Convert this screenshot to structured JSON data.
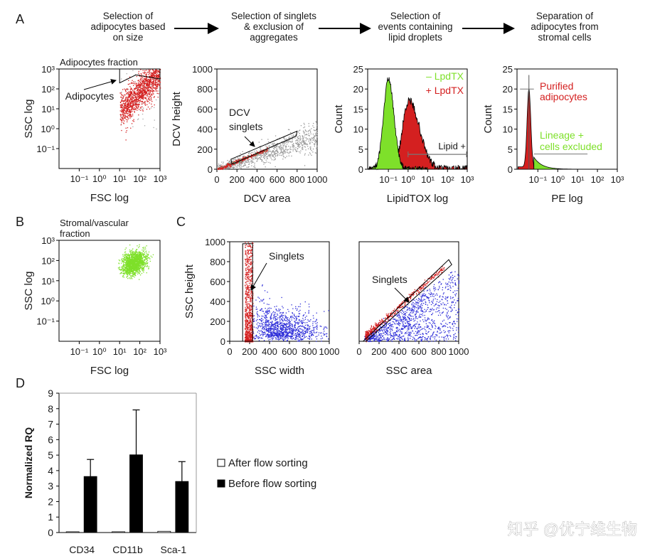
{
  "panel_letters": {
    "A": "A",
    "B": "B",
    "C": "C",
    "D": "D"
  },
  "workflow_steps": [
    [
      "Selection of",
      "adipocytes based",
      "on size"
    ],
    [
      "Selection of singlets",
      "& exclusion of",
      "aggregates"
    ],
    [
      "Selection of",
      "events containing",
      "lipid droplets"
    ],
    [
      "Separation of",
      "adipocytes from",
      "stromal cells"
    ]
  ],
  "colors": {
    "red": "#d42020",
    "green": "#7ee02a",
    "blue": "#2a2ad8",
    "gray": "#9a9a9a",
    "bar_before": "#000000",
    "bar_after": "#ffffff"
  },
  "chart_data": [
    {
      "id": "A1",
      "type": "scatter",
      "title": "Adipocytes fraction",
      "xlabel": "FSC log",
      "ylabel": "SSC log",
      "scale": "log",
      "xticks": [
        "10⁻¹",
        "10⁰",
        "10¹",
        "10²",
        "10³"
      ],
      "yticks": [
        "10³",
        "10²",
        "10¹",
        "10⁰",
        "10⁻¹"
      ],
      "annotations": [
        "Adipocytes"
      ],
      "point_color": "red"
    },
    {
      "id": "A2",
      "type": "scatter",
      "xlabel": "DCV area",
      "ylabel": "DCV height",
      "xlim": [
        0,
        1000
      ],
      "ylim": [
        0,
        1000
      ],
      "xticks": [
        "0",
        "200",
        "400",
        "600",
        "800",
        "1000"
      ],
      "yticks": [
        "0",
        "200",
        "400",
        "600",
        "800",
        "1000"
      ],
      "annotations": [
        "DCV",
        "singlets"
      ],
      "point_color": "gray / red"
    },
    {
      "id": "A3",
      "type": "area",
      "xlabel": "LipidTOX log",
      "ylabel": "Count",
      "ylim": [
        0,
        25
      ],
      "xticks": [
        "10⁻¹",
        "10⁰",
        "10¹",
        "10²",
        "10³"
      ],
      "yticks": [
        "0",
        "5",
        "10",
        "15",
        "20",
        "25"
      ],
      "series": [
        {
          "name": "– LpdTX",
          "color": "green",
          "peak_x_log": -1,
          "peak": 23
        },
        {
          "name": "+ LpdTX",
          "color": "red",
          "peak_x_log": 0,
          "peak": 17
        }
      ],
      "annotations": [
        "Lipid +"
      ]
    },
    {
      "id": "A4",
      "type": "area",
      "xlabel": "PE log",
      "ylabel": "Count",
      "ylim": [
        0,
        25
      ],
      "xticks": [
        "10⁻¹",
        "10⁰",
        "10¹",
        "10²",
        "10³"
      ],
      "yticks": [
        "0",
        "5",
        "10",
        "15",
        "20",
        "25"
      ],
      "annotations": [
        "Purified",
        "adipocytes",
        "Lineage +",
        "cells excluded"
      ]
    },
    {
      "id": "B",
      "type": "scatter",
      "title": [
        "Stromal/vascular",
        "fraction"
      ],
      "xlabel": "FSC log",
      "ylabel": "SSC log",
      "scale": "log",
      "xticks": [
        "10⁻¹",
        "10⁰",
        "10¹",
        "10²",
        "10³"
      ],
      "yticks": [
        "10³",
        "10²",
        "10¹",
        "10⁰",
        "10⁻¹"
      ],
      "point_color": "green"
    },
    {
      "id": "C1",
      "type": "scatter",
      "xlabel": "SSC width",
      "ylabel": "SSC height",
      "xlim": [
        0,
        1000
      ],
      "ylim": [
        0,
        1000
      ],
      "xticks": [
        "0",
        "200",
        "400",
        "600",
        "800",
        "1000"
      ],
      "yticks": [
        "0",
        "200",
        "400",
        "600",
        "800",
        "1000"
      ],
      "annotations": [
        "Singlets"
      ]
    },
    {
      "id": "C2",
      "type": "scatter",
      "xlabel": "SSC area",
      "xlim": [
        0,
        1000
      ],
      "ylim": [
        0,
        1000
      ],
      "xticks": [
        "0",
        "200",
        "400",
        "600",
        "800",
        "1000"
      ],
      "annotations": [
        "Singlets"
      ]
    },
    {
      "id": "D",
      "type": "bar",
      "ylabel": "Normalized RQ",
      "ylim": [
        0,
        9
      ],
      "yticks": [
        "0",
        "1",
        "2",
        "3",
        "4",
        "5",
        "6",
        "7",
        "8",
        "9"
      ],
      "categories": [
        "CD34",
        "CD11b",
        "Sca-1"
      ],
      "series": [
        {
          "name": "After flow sorting",
          "values": [
            0.05,
            0.05,
            0.08
          ],
          "errors": [
            0,
            0,
            0
          ]
        },
        {
          "name": "Before flow sorting",
          "values": [
            3.62,
            5.02,
            3.3
          ],
          "errors": [
            1.1,
            2.9,
            1.28
          ]
        }
      ],
      "legend": "right",
      "grid": false
    }
  ],
  "watermark": "知乎 @优宁维生物"
}
